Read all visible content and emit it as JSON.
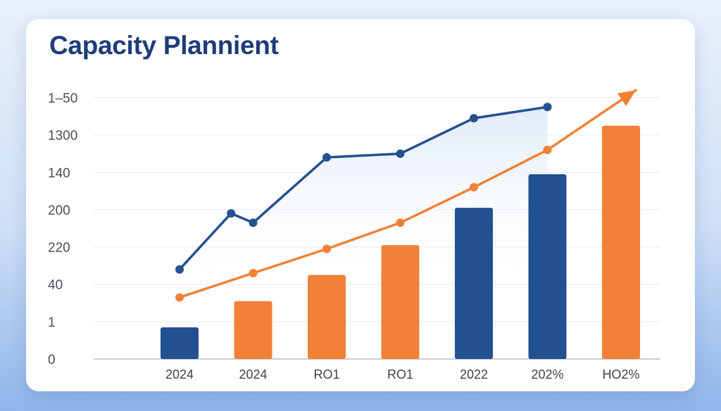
{
  "chart_data": {
    "type": "bar",
    "title": "Capacity Plannient",
    "xlabel": "",
    "ylabel": "",
    "categories": [
      "2024",
      "2024",
      "RO1",
      "RO1",
      "2022",
      "202%",
      "HO2%"
    ],
    "y_tick_labels": [
      "0",
      "1",
      "40",
      "220",
      "200",
      "140",
      "1300",
      "1–50"
    ],
    "ylim": [
      0,
      7
    ],
    "grid": true,
    "legend": "none",
    "bars": {
      "values": [
        0.85,
        1.55,
        2.25,
        3.05,
        4.05,
        4.95,
        6.25
      ],
      "colors": [
        "#23508f",
        "#f08136",
        "#f08136",
        "#f08136",
        "#23508f",
        "#23508f",
        "#f08136"
      ]
    },
    "series": [
      {
        "type": "line",
        "color": "#23508f",
        "x": [
          0.0,
          0.7,
          1.0,
          2.0,
          3.0,
          4.0,
          5.0
        ],
        "values": [
          2.4,
          3.9,
          3.65,
          5.4,
          5.5,
          6.45,
          6.75
        ]
      },
      {
        "type": "line",
        "color": "#f08136",
        "arrow": true,
        "x": [
          0,
          1,
          2,
          3,
          4,
          5,
          6.2
        ],
        "values": [
          1.65,
          2.3,
          2.95,
          3.65,
          4.6,
          5.6,
          7.2
        ]
      }
    ]
  }
}
